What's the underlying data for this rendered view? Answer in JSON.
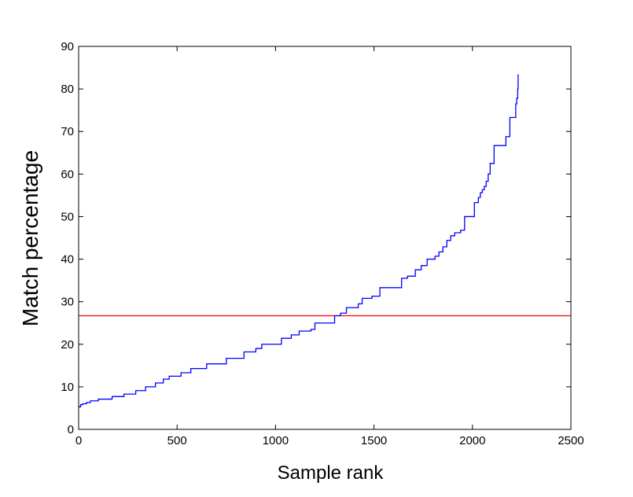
{
  "chart_data": {
    "type": "line",
    "title": "",
    "xlabel": "Sample rank",
    "ylabel": "Match percentage",
    "xlim": [
      0,
      2500
    ],
    "ylim": [
      0,
      90
    ],
    "x_ticks": [
      0,
      500,
      1000,
      1500,
      2000,
      2500
    ],
    "y_ticks": [
      0,
      10,
      20,
      30,
      40,
      50,
      60,
      70,
      80,
      90
    ],
    "grid": false,
    "legend": "none",
    "series": [
      {
        "color": "#0000ff",
        "step": true,
        "points": [
          [
            0,
            5.3
          ],
          [
            10,
            5.8
          ],
          [
            20,
            6.0
          ],
          [
            40,
            6.3
          ],
          [
            60,
            6.7
          ],
          [
            100,
            7.1
          ],
          [
            170,
            7.7
          ],
          [
            230,
            8.3
          ],
          [
            290,
            9.1
          ],
          [
            340,
            10.0
          ],
          [
            390,
            10.9
          ],
          [
            430,
            11.8
          ],
          [
            460,
            12.5
          ],
          [
            520,
            13.3
          ],
          [
            570,
            14.3
          ],
          [
            650,
            15.4
          ],
          [
            750,
            16.7
          ],
          [
            840,
            18.2
          ],
          [
            900,
            19.0
          ],
          [
            930,
            20.0
          ],
          [
            1030,
            21.4
          ],
          [
            1080,
            22.2
          ],
          [
            1120,
            23.1
          ],
          [
            1180,
            23.5
          ],
          [
            1200,
            25.0
          ],
          [
            1300,
            26.7
          ],
          [
            1330,
            27.3
          ],
          [
            1360,
            28.6
          ],
          [
            1420,
            29.5
          ],
          [
            1440,
            30.8
          ],
          [
            1490,
            31.3
          ],
          [
            1530,
            33.3
          ],
          [
            1640,
            35.5
          ],
          [
            1670,
            36.0
          ],
          [
            1710,
            37.5
          ],
          [
            1740,
            38.5
          ],
          [
            1770,
            40.0
          ],
          [
            1810,
            40.7
          ],
          [
            1830,
            41.7
          ],
          [
            1850,
            42.9
          ],
          [
            1870,
            44.4
          ],
          [
            1890,
            45.5
          ],
          [
            1910,
            46.2
          ],
          [
            1940,
            46.8
          ],
          [
            1960,
            50.0
          ],
          [
            2010,
            53.3
          ],
          [
            2030,
            54.5
          ],
          [
            2040,
            55.6
          ],
          [
            2050,
            56.3
          ],
          [
            2060,
            57.1
          ],
          [
            2070,
            58.3
          ],
          [
            2080,
            60.0
          ],
          [
            2090,
            62.5
          ],
          [
            2110,
            66.7
          ],
          [
            2170,
            68.8
          ],
          [
            2190,
            73.3
          ],
          [
            2220,
            76.5
          ],
          [
            2225,
            77.8
          ],
          [
            2230,
            80.0
          ],
          [
            2232,
            83.3
          ],
          [
            2235,
            83.3
          ]
        ]
      }
    ],
    "reference_lines": [
      {
        "orientation": "horizontal",
        "y": 26.7,
        "color": "#ff0000"
      }
    ]
  }
}
